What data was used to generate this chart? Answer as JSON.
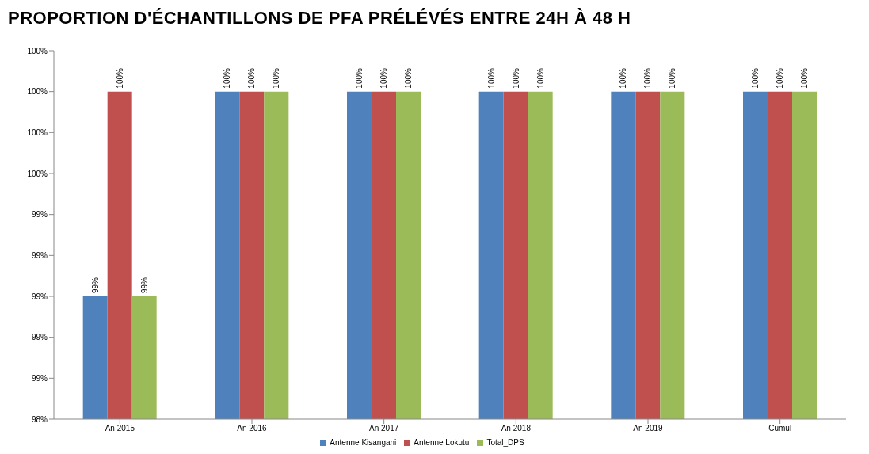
{
  "chart_data": {
    "type": "bar",
    "title": "PROPORTION D'ÉCHANTILLONS DE PFA PRÉLÉVÉS ENTRE 24H À 48 H",
    "categories": [
      "An 2015",
      "An 2016",
      "An 2017",
      "An 2018",
      "An 2019",
      "Cumul"
    ],
    "series": [
      {
        "name": "Antenne Kisangani",
        "color": "#4f81bd",
        "values": [
          99,
          100,
          100,
          100,
          100,
          100
        ],
        "value_labels": [
          "99%",
          "100%",
          "100%",
          "100%",
          "100%",
          "100%"
        ]
      },
      {
        "name": "Antenne Lokutu",
        "color": "#c0504d",
        "values": [
          100,
          100,
          100,
          100,
          100,
          100
        ],
        "value_labels": [
          "100%",
          "100%",
          "100%",
          "100%",
          "100%",
          "100%"
        ]
      },
      {
        "name": "Total_DPS",
        "color": "#9bbb59",
        "values": [
          99,
          100,
          100,
          100,
          100,
          100
        ],
        "value_labels": [
          "99%",
          "100%",
          "100%",
          "100%",
          "100%",
          "100%"
        ]
      }
    ],
    "ylim": [
      98.4,
      100.2
    ],
    "yticks": [
      {
        "value": 98.4,
        "label": "98%"
      },
      {
        "value": 98.6,
        "label": "99%"
      },
      {
        "value": 98.8,
        "label": "99%"
      },
      {
        "value": 99.0,
        "label": "99%"
      },
      {
        "value": 99.2,
        "label": "99%"
      },
      {
        "value": 99.4,
        "label": "99%"
      },
      {
        "value": 99.6,
        "label": "100%"
      },
      {
        "value": 99.8,
        "label": "100%"
      },
      {
        "value": 100.0,
        "label": "100%"
      },
      {
        "value": 100.2,
        "label": "100%"
      }
    ],
    "grid": false,
    "legend": "bottom"
  }
}
